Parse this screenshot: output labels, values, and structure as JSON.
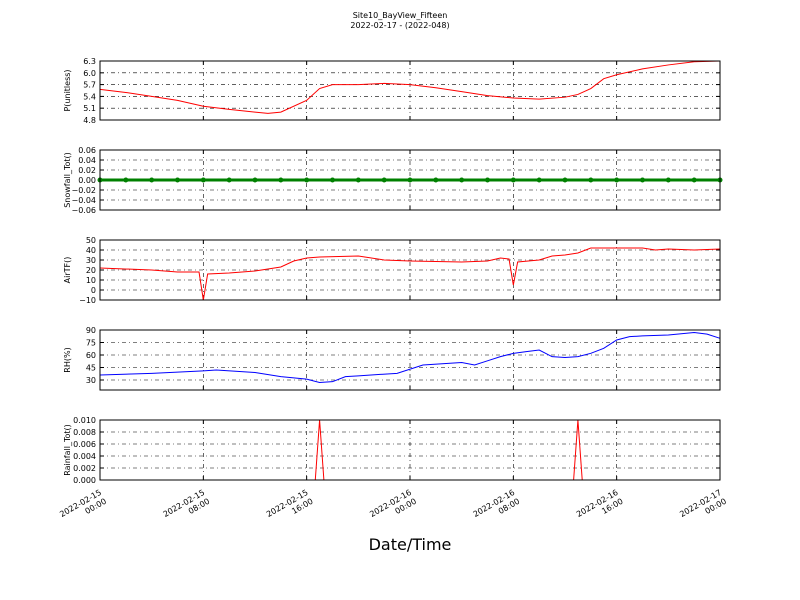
{
  "title": "Site10_BayView_Fifteen",
  "subtitle": "2022-02-17 - (2022-048)",
  "xlabel": "Date/Time",
  "xlim": [
    "2022-02-15 00:00",
    "2022-02-17 00:00"
  ],
  "xticks": [
    "2022-02-15 00:00",
    "2022-02-15 08:00",
    "2022-02-15 16:00",
    "2022-02-16 00:00",
    "2022-02-16 08:00",
    "2022-02-16 16:00",
    "2022-02-17 00:00"
  ],
  "grid": true,
  "chart_data": [
    {
      "type": "line",
      "ylabel": "P(unitless)",
      "ylim": [
        4.8,
        6.3
      ],
      "yticks": [
        4.8,
        5.1,
        5.4,
        5.7,
        {
          "value": 6.0,
          "label": "6.0"
        },
        6.3
      ],
      "x": [
        "2022-02-15 00:00",
        "2022-02-15 02:00",
        "2022-02-15 04:00",
        "2022-02-15 06:00",
        "2022-02-15 08:00",
        "2022-02-15 10:00",
        "2022-02-15 12:00",
        "2022-02-15 13:00",
        "2022-02-15 14:00",
        "2022-02-15 16:00",
        "2022-02-15 17:00",
        "2022-02-15 18:00",
        "2022-02-15 20:00",
        "2022-02-15 22:00",
        "2022-02-16 00:00",
        "2022-02-16 02:00",
        "2022-02-16 04:00",
        "2022-02-16 06:00",
        "2022-02-16 08:00",
        "2022-02-16 10:00",
        "2022-02-16 12:00",
        "2022-02-16 13:00",
        "2022-02-16 14:00",
        "2022-02-16 15:00",
        "2022-02-16 16:00",
        "2022-02-16 18:00",
        "2022-02-16 20:00",
        "2022-02-16 22:00",
        "2022-02-17 00:00"
      ],
      "series": [
        {
          "color": "#ff0000",
          "values": [
            5.58,
            5.5,
            5.4,
            5.3,
            5.15,
            5.07,
            5.0,
            4.97,
            5.0,
            5.3,
            5.6,
            5.7,
            5.7,
            5.73,
            5.7,
            5.62,
            5.52,
            5.42,
            5.36,
            5.33,
            5.38,
            5.45,
            5.6,
            5.85,
            5.95,
            6.1,
            6.2,
            6.28,
            6.3
          ]
        }
      ]
    },
    {
      "type": "line",
      "ylabel": "Snowfall_Tot()",
      "ylim": [
        -0.06,
        0.06
      ],
      "yticks": [
        {
          "value": -0.06,
          "label": "−0.06"
        },
        {
          "value": -0.04,
          "label": "−0.04"
        },
        {
          "value": -0.02,
          "label": "−0.02"
        },
        {
          "value": 0,
          "label": "0.00"
        },
        {
          "value": 0.02,
          "label": "0.02"
        },
        {
          "value": 0.04,
          "label": "0.04"
        },
        {
          "value": 0.06,
          "label": "0.06"
        }
      ],
      "x": [
        "2022-02-15 00:00",
        "2022-02-15 02:00",
        "2022-02-15 04:00",
        "2022-02-15 06:00",
        "2022-02-15 08:00",
        "2022-02-15 10:00",
        "2022-02-15 12:00",
        "2022-02-15 14:00",
        "2022-02-15 16:00",
        "2022-02-15 18:00",
        "2022-02-15 20:00",
        "2022-02-15 22:00",
        "2022-02-16 00:00",
        "2022-02-16 02:00",
        "2022-02-16 04:00",
        "2022-02-16 06:00",
        "2022-02-16 08:00",
        "2022-02-16 10:00",
        "2022-02-16 12:00",
        "2022-02-16 14:00",
        "2022-02-16 16:00",
        "2022-02-16 18:00",
        "2022-02-16 20:00",
        "2022-02-16 22:00",
        "2022-02-17 00:00"
      ],
      "markers": true,
      "series": [
        {
          "color": "#008000",
          "values": [
            0,
            0,
            0,
            0,
            0,
            0,
            0,
            0,
            0,
            0,
            0,
            0,
            0,
            0,
            0,
            0,
            0,
            0,
            0,
            0,
            0,
            0,
            0,
            0,
            0
          ]
        }
      ]
    },
    {
      "type": "line",
      "ylabel": "AirTF()",
      "ylim": [
        -10,
        50
      ],
      "yticks": [
        {
          "value": -10,
          "label": "−10"
        },
        0,
        10,
        20,
        30,
        40,
        50
      ],
      "x": [
        "2022-02-15 00:00",
        "2022-02-15 04:00",
        "2022-02-15 06:00",
        "2022-02-15 07:40",
        "2022-02-15 08:00",
        "2022-02-15 08:20",
        "2022-02-15 10:00",
        "2022-02-15 12:00",
        "2022-02-15 14:00",
        "2022-02-15 15:00",
        "2022-02-15 16:00",
        "2022-02-15 17:00",
        "2022-02-15 20:00",
        "2022-02-15 22:00",
        "2022-02-16 00:00",
        "2022-02-16 04:00",
        "2022-02-16 06:00",
        "2022-02-16 07:00",
        "2022-02-16 07:40",
        "2022-02-16 08:00",
        "2022-02-16 08:20",
        "2022-02-16 10:00",
        "2022-02-16 11:00",
        "2022-02-16 12:00",
        "2022-02-16 13:00",
        "2022-02-16 14:00",
        "2022-02-16 16:00",
        "2022-02-16 18:00",
        "2022-02-16 19:00",
        "2022-02-16 20:00",
        "2022-02-16 22:00",
        "2022-02-17 00:00"
      ],
      "series": [
        {
          "color": "#ff0000",
          "values": [
            22,
            20,
            18,
            18,
            -10,
            16,
            17,
            19,
            23,
            29,
            32,
            33,
            34,
            30,
            29,
            28,
            29,
            32,
            31,
            5,
            28,
            30,
            34,
            35,
            37,
            42,
            42,
            42,
            40,
            41,
            40,
            41
          ]
        }
      ]
    },
    {
      "type": "line",
      "ylabel": "RH(%)",
      "ylim": [
        18,
        90
      ],
      "yticks": [
        30,
        45,
        60,
        75,
        90
      ],
      "x": [
        "2022-02-15 00:00",
        "2022-02-15 04:00",
        "2022-02-15 08:00",
        "2022-02-15 09:00",
        "2022-02-15 12:00",
        "2022-02-15 14:00",
        "2022-02-15 16:00",
        "2022-02-15 17:00",
        "2022-02-15 18:00",
        "2022-02-15 19:00",
        "2022-02-15 20:00",
        "2022-02-15 23:00",
        "2022-02-16 01:00",
        "2022-02-16 04:00",
        "2022-02-16 05:00",
        "2022-02-16 06:00",
        "2022-02-16 07:00",
        "2022-02-16 08:00",
        "2022-02-16 09:00",
        "2022-02-16 10:00",
        "2022-02-16 11:00",
        "2022-02-16 12:00",
        "2022-02-16 13:00",
        "2022-02-16 14:00",
        "2022-02-16 15:00",
        "2022-02-16 16:00",
        "2022-02-16 17:00",
        "2022-02-16 18:00",
        "2022-02-16 20:00",
        "2022-02-16 22:00",
        "2022-02-16 23:00",
        "2022-02-17 00:00"
      ],
      "series": [
        {
          "color": "#0000ff",
          "values": [
            36,
            38,
            41,
            42,
            39,
            34,
            31,
            27,
            28,
            34,
            35,
            38,
            48,
            51,
            48,
            53,
            58,
            62,
            64,
            66,
            58,
            57,
            58,
            62,
            68,
            78,
            82,
            83,
            84,
            87,
            85,
            80
          ]
        }
      ]
    },
    {
      "type": "line",
      "ylabel": "Rainfall_Tot()",
      "ylim": [
        0,
        0.01
      ],
      "yticks": [
        {
          "value": 0,
          "label": "0.000"
        },
        {
          "value": 0.002,
          "label": "0.002"
        },
        {
          "value": 0.004,
          "label": "0.004"
        },
        {
          "value": 0.006,
          "label": "0.006"
        },
        {
          "value": 0.008,
          "label": "0.008"
        },
        {
          "value": 0.01,
          "label": "0.010"
        }
      ],
      "x": [
        "2022-02-15 00:00",
        "2022-02-15 16:40",
        "2022-02-15 17:00",
        "2022-02-15 17:20",
        "2022-02-16 12:40",
        "2022-02-16 13:00",
        "2022-02-16 13:20",
        "2022-02-17 00:00"
      ],
      "series": [
        {
          "color": "#ff0000",
          "values": [
            0,
            0,
            0.01,
            0,
            0,
            0.01,
            0,
            0
          ]
        }
      ]
    }
  ]
}
